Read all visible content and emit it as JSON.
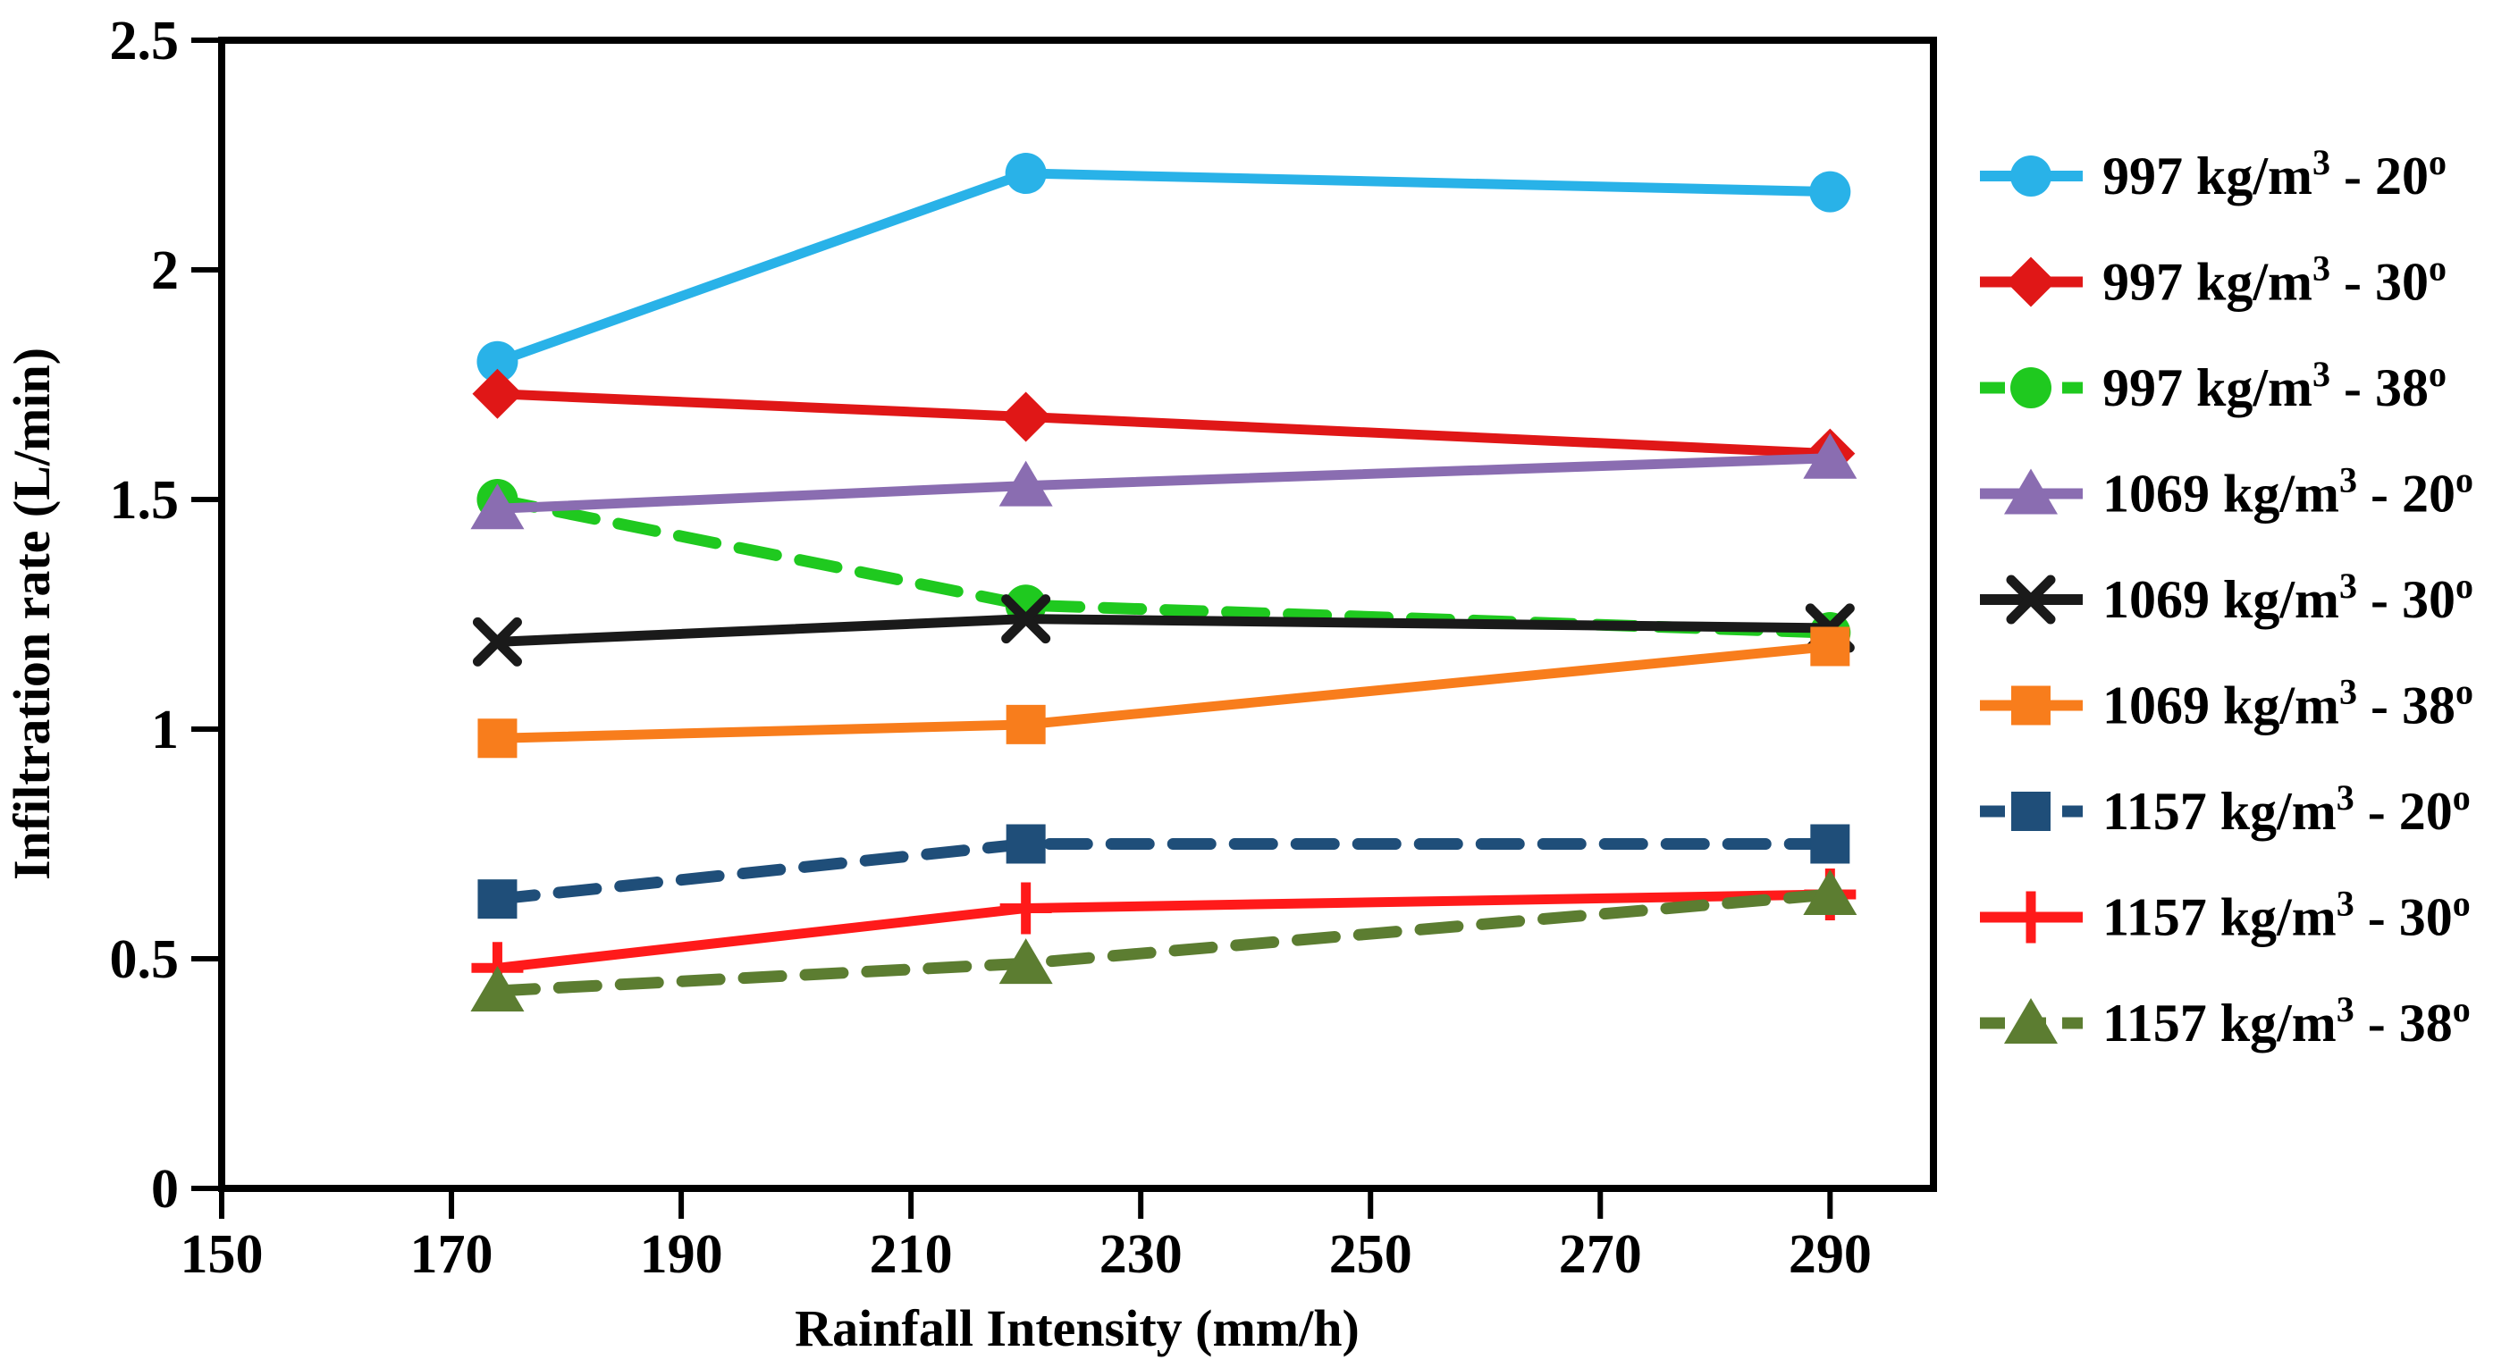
{
  "figure": {
    "background": "#FFFFFF"
  },
  "chart_data": {
    "type": "line",
    "title": "",
    "xlabel": "Rainfall Intensity (mm/h)",
    "ylabel": "Infiltration rate (L/min)",
    "x": [
      174,
      220,
      290
    ],
    "x_ticks": [
      "150",
      "170",
      "190",
      "210",
      "230",
      "250",
      "270",
      "290"
    ],
    "x_tick_values": [
      150,
      170,
      190,
      210,
      230,
      250,
      270,
      290
    ],
    "y_ticks": [
      "0",
      "0.5",
      "1",
      "1.5",
      "2",
      "2.5"
    ],
    "y_tick_values": [
      0,
      0.5,
      1,
      1.5,
      2,
      2.5
    ],
    "xlim": [
      150,
      299
    ],
    "ylim": [
      0,
      2.5
    ],
    "grid": false,
    "legend_position": "right",
    "series": [
      {
        "label": "997 kg/m³ - 20º",
        "density": "997 kg/m³",
        "angle": "20º",
        "color": "#29B2E8",
        "marker": "circle",
        "line_style": "solid",
        "values": [
          1.8,
          2.21,
          2.17
        ]
      },
      {
        "label": "997 kg/m³ - 30º",
        "density": "997 kg/m³",
        "angle": "30º",
        "color": "#E01717",
        "marker": "diamond",
        "line_style": "solid",
        "values": [
          1.73,
          1.68,
          1.6
        ]
      },
      {
        "label": "997 kg/m³ - 38º",
        "density": "997 kg/m³",
        "angle": "38º",
        "color": "#1FC91F",
        "marker": "circle",
        "line_style": "dashed",
        "values": [
          1.5,
          1.27,
          1.21
        ]
      },
      {
        "label": "1069 kg/m³ - 20º",
        "density": "1069 kg/m³",
        "angle": "20º",
        "color": "#8A6DB1",
        "marker": "triangle",
        "line_style": "solid",
        "values": [
          1.48,
          1.53,
          1.59
        ]
      },
      {
        "label": "1069 kg/m³ - 30º",
        "density": "1069 kg/m³",
        "angle": "30º",
        "color": "#1A1A1A",
        "marker": "x",
        "line_style": "solid",
        "values": [
          1.19,
          1.24,
          1.22
        ]
      },
      {
        "label": "1069 kg/m³ - 38º",
        "density": "1069 kg/m³",
        "angle": "38º",
        "color": "#F87D1C",
        "marker": "square",
        "line_style": "solid",
        "values": [
          0.98,
          1.01,
          1.18
        ]
      },
      {
        "label": "1157 kg/m³ - 20º",
        "density": "1157 kg/m³",
        "angle": "20º",
        "color": "#1F4E79",
        "marker": "square",
        "line_style": "dashed",
        "values": [
          0.63,
          0.75,
          0.75
        ]
      },
      {
        "label": "1157 kg/m³ - 30º",
        "density": "1157 kg/m³",
        "angle": "30º",
        "color": "#FF1A1A",
        "marker": "plus",
        "line_style": "solid",
        "values": [
          0.48,
          0.61,
          0.64
        ]
      },
      {
        "label": "1157 kg/m³ - 38º",
        "density": "1157 kg/m³",
        "angle": "38º",
        "color": "#5C7D31",
        "marker": "triangle",
        "line_style": "dashed",
        "values": [
          0.43,
          0.49,
          0.64
        ]
      }
    ]
  }
}
